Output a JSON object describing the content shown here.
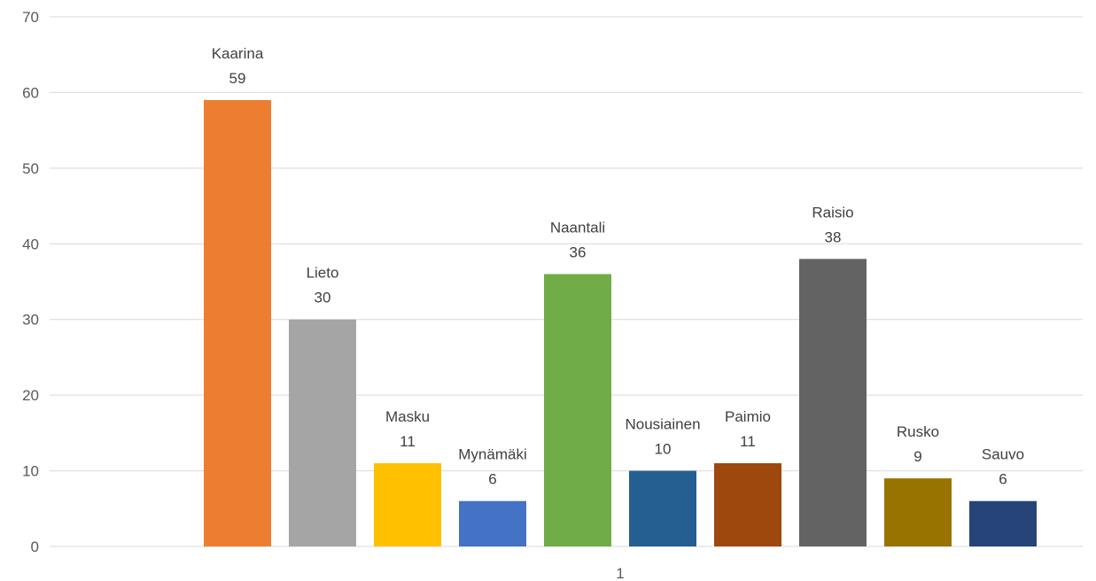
{
  "chart_data": {
    "type": "bar",
    "title": "",
    "xlabel": "",
    "ylabel": "",
    "categories": [
      "1"
    ],
    "ylim": [
      0,
      70
    ],
    "yticks": [
      0,
      10,
      20,
      30,
      40,
      50,
      60,
      70
    ],
    "grid": true,
    "legend": "none",
    "series": [
      {
        "name": "Kaarina",
        "values": [
          59
        ],
        "color": "#ED7D31"
      },
      {
        "name": "Lieto",
        "values": [
          30
        ],
        "color": "#A5A5A5"
      },
      {
        "name": "Masku",
        "values": [
          11
        ],
        "color": "#FFC000"
      },
      {
        "name": "Mynämäki",
        "values": [
          6
        ],
        "color": "#4472C4"
      },
      {
        "name": "Naantali",
        "values": [
          36
        ],
        "color": "#70AD47"
      },
      {
        "name": "Nousiainen",
        "values": [
          10
        ],
        "color": "#255E91"
      },
      {
        "name": "Paimio",
        "values": [
          11
        ],
        "color": "#9E480E"
      },
      {
        "name": "Raisio",
        "values": [
          38
        ],
        "color": "#636363"
      },
      {
        "name": "Rusko",
        "values": [
          9
        ],
        "color": "#997300"
      },
      {
        "name": "Sauvo",
        "values": [
          6
        ],
        "color": "#264478"
      }
    ]
  }
}
